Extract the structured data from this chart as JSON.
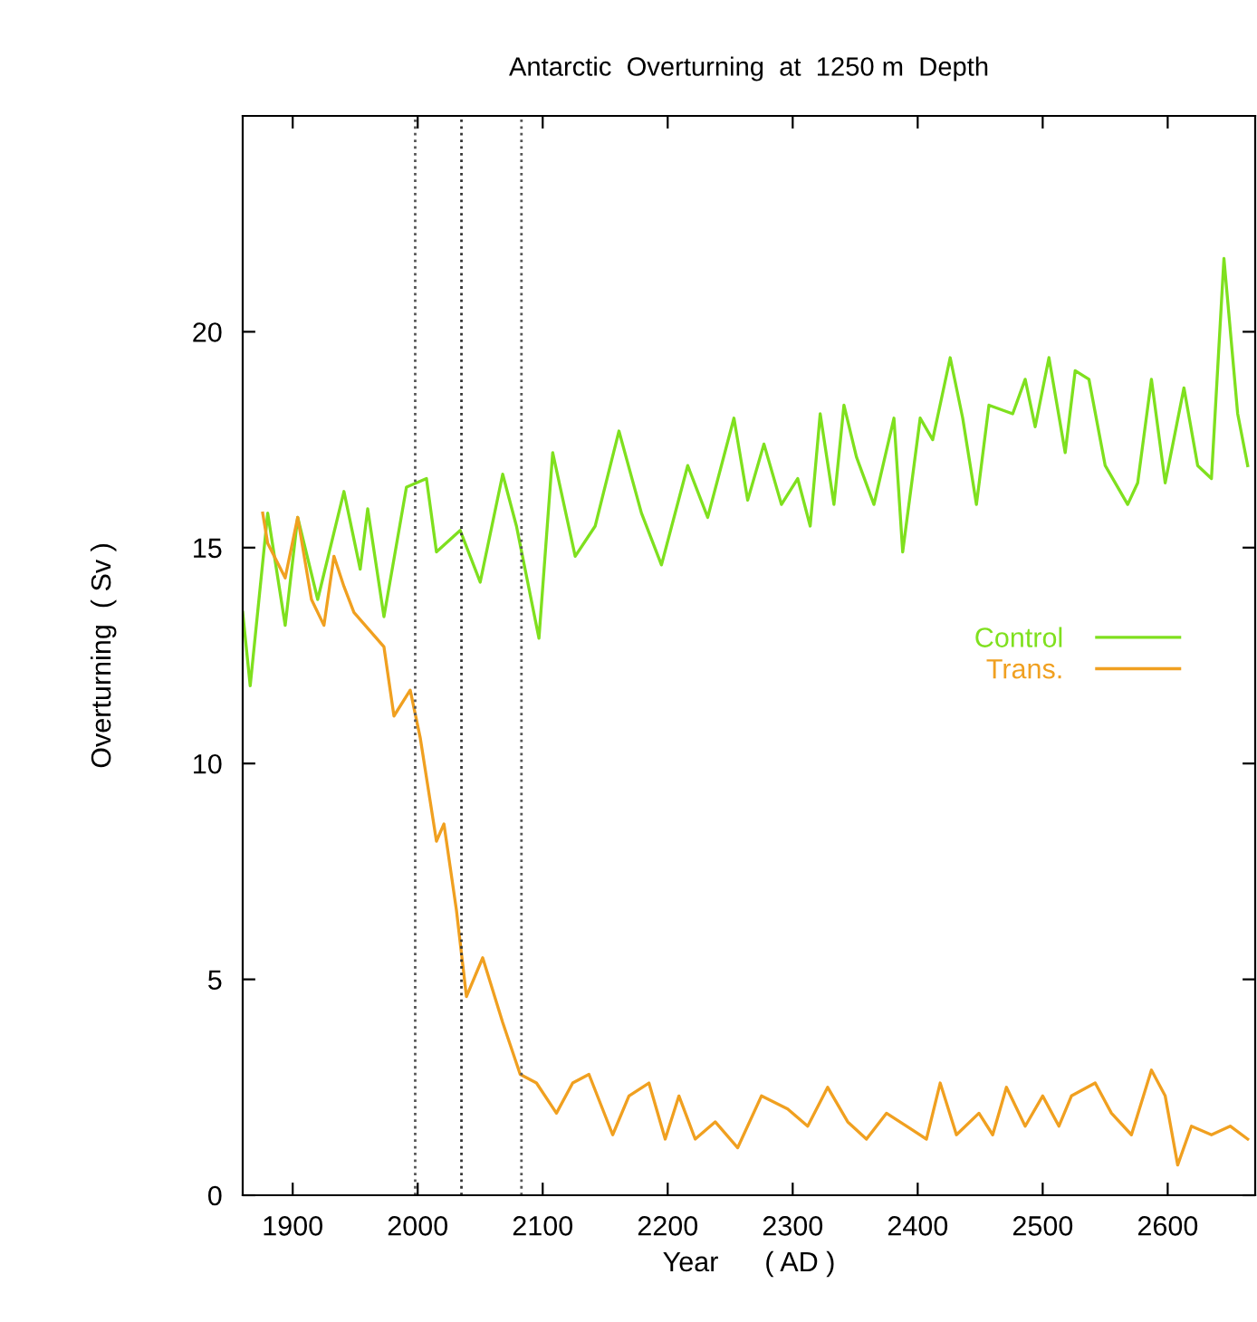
{
  "chart_data": {
    "type": "line",
    "title": "Antarctic  Overturning  at  1250 m  Depth",
    "xlabel": "Year      ( AD )",
    "ylabel": "Overturning  ( Sv )",
    "xlim": [
      1860,
      2670
    ],
    "xticks": [
      1900,
      2000,
      2100,
      2200,
      2300,
      2400,
      2500,
      2600
    ],
    "ylim": [
      0,
      25
    ],
    "yticks": [
      0,
      5,
      10,
      15,
      20
    ],
    "grid": false,
    "legend": "right",
    "line_style": "solid",
    "marker": "none",
    "ref_lines": [
      {
        "axis": "x",
        "value": 1998,
        "label": null,
        "color": "#555555",
        "line_style": "dotted"
      },
      {
        "axis": "x",
        "value": 2035,
        "label": null,
        "color": "#333333",
        "line_style": "dotted"
      },
      {
        "axis": "x",
        "value": 2083,
        "label": null,
        "color": "#555555",
        "line_style": "dotted"
      }
    ],
    "series": [
      {
        "name": "Control",
        "color": "#7fe01e",
        "x": [
          1860,
          1866,
          1880,
          1894,
          1904,
          1920,
          1941,
          1954,
          1960,
          1973,
          1991,
          2007,
          2015,
          2034,
          2050,
          2068,
          2079,
          2097,
          2108,
          2126,
          2142,
          2161,
          2179,
          2195,
          2216,
          2232,
          2253,
          2264,
          2277,
          2291,
          2304,
          2314,
          2322,
          2333,
          2341,
          2351,
          2365,
          2381,
          2388,
          2402,
          2412,
          2426,
          2436,
          2447,
          2457,
          2476,
          2486,
          2494,
          2505,
          2518,
          2526,
          2537,
          2550,
          2568,
          2576,
          2587,
          2598,
          2613,
          2624,
          2635,
          2645,
          2656,
          2664
        ],
        "values": [
          13.5,
          11.8,
          15.8,
          13.2,
          15.7,
          13.8,
          16.3,
          14.5,
          15.9,
          13.4,
          16.4,
          16.6,
          14.9,
          15.4,
          14.2,
          16.7,
          15.5,
          12.9,
          17.2,
          14.8,
          15.5,
          17.7,
          15.8,
          14.6,
          16.9,
          15.7,
          18.0,
          16.1,
          17.4,
          16.0,
          16.6,
          15.5,
          18.1,
          16.0,
          18.3,
          17.1,
          16.0,
          18.0,
          14.9,
          18.0,
          17.5,
          19.4,
          18.0,
          16.0,
          18.3,
          18.1,
          18.9,
          17.8,
          19.4,
          17.2,
          19.1,
          18.9,
          16.9,
          16.0,
          16.5,
          18.9,
          16.5,
          18.7,
          16.9,
          16.6,
          21.7,
          18.1,
          16.9
        ]
      },
      {
        "name": "Trans.",
        "color": "#f0a020",
        "x": [
          1876,
          1880,
          1894,
          1904,
          1915,
          1925,
          1933,
          1941,
          1949,
          1973,
          1981,
          1994,
          2002,
          2015,
          2021,
          2031,
          2039,
          2052,
          2068,
          2082,
          2095,
          2111,
          2124,
          2137,
          2156,
          2169,
          2185,
          2198,
          2209,
          2222,
          2238,
          2256,
          2275,
          2296,
          2312,
          2328,
          2344,
          2359,
          2375,
          2391,
          2407,
          2418,
          2431,
          2449,
          2460,
          2471,
          2486,
          2500,
          2513,
          2523,
          2542,
          2555,
          2571,
          2587,
          2598,
          2608,
          2619,
          2635,
          2650,
          2664
        ],
        "values": [
          15.8,
          15.1,
          14.3,
          15.7,
          13.8,
          13.2,
          14.8,
          14.1,
          13.5,
          12.7,
          11.1,
          11.7,
          10.6,
          8.2,
          8.6,
          6.6,
          4.6,
          5.5,
          4.0,
          2.8,
          2.6,
          1.9,
          2.6,
          2.8,
          1.4,
          2.3,
          2.6,
          1.3,
          2.3,
          1.3,
          1.7,
          1.1,
          2.3,
          2.0,
          1.6,
          2.5,
          1.7,
          1.3,
          1.9,
          1.6,
          1.3,
          2.6,
          1.4,
          1.9,
          1.4,
          2.5,
          1.6,
          2.3,
          1.6,
          2.3,
          2.6,
          1.9,
          1.4,
          2.9,
          2.3,
          0.7,
          1.6,
          1.4,
          1.6,
          1.3
        ]
      }
    ]
  }
}
